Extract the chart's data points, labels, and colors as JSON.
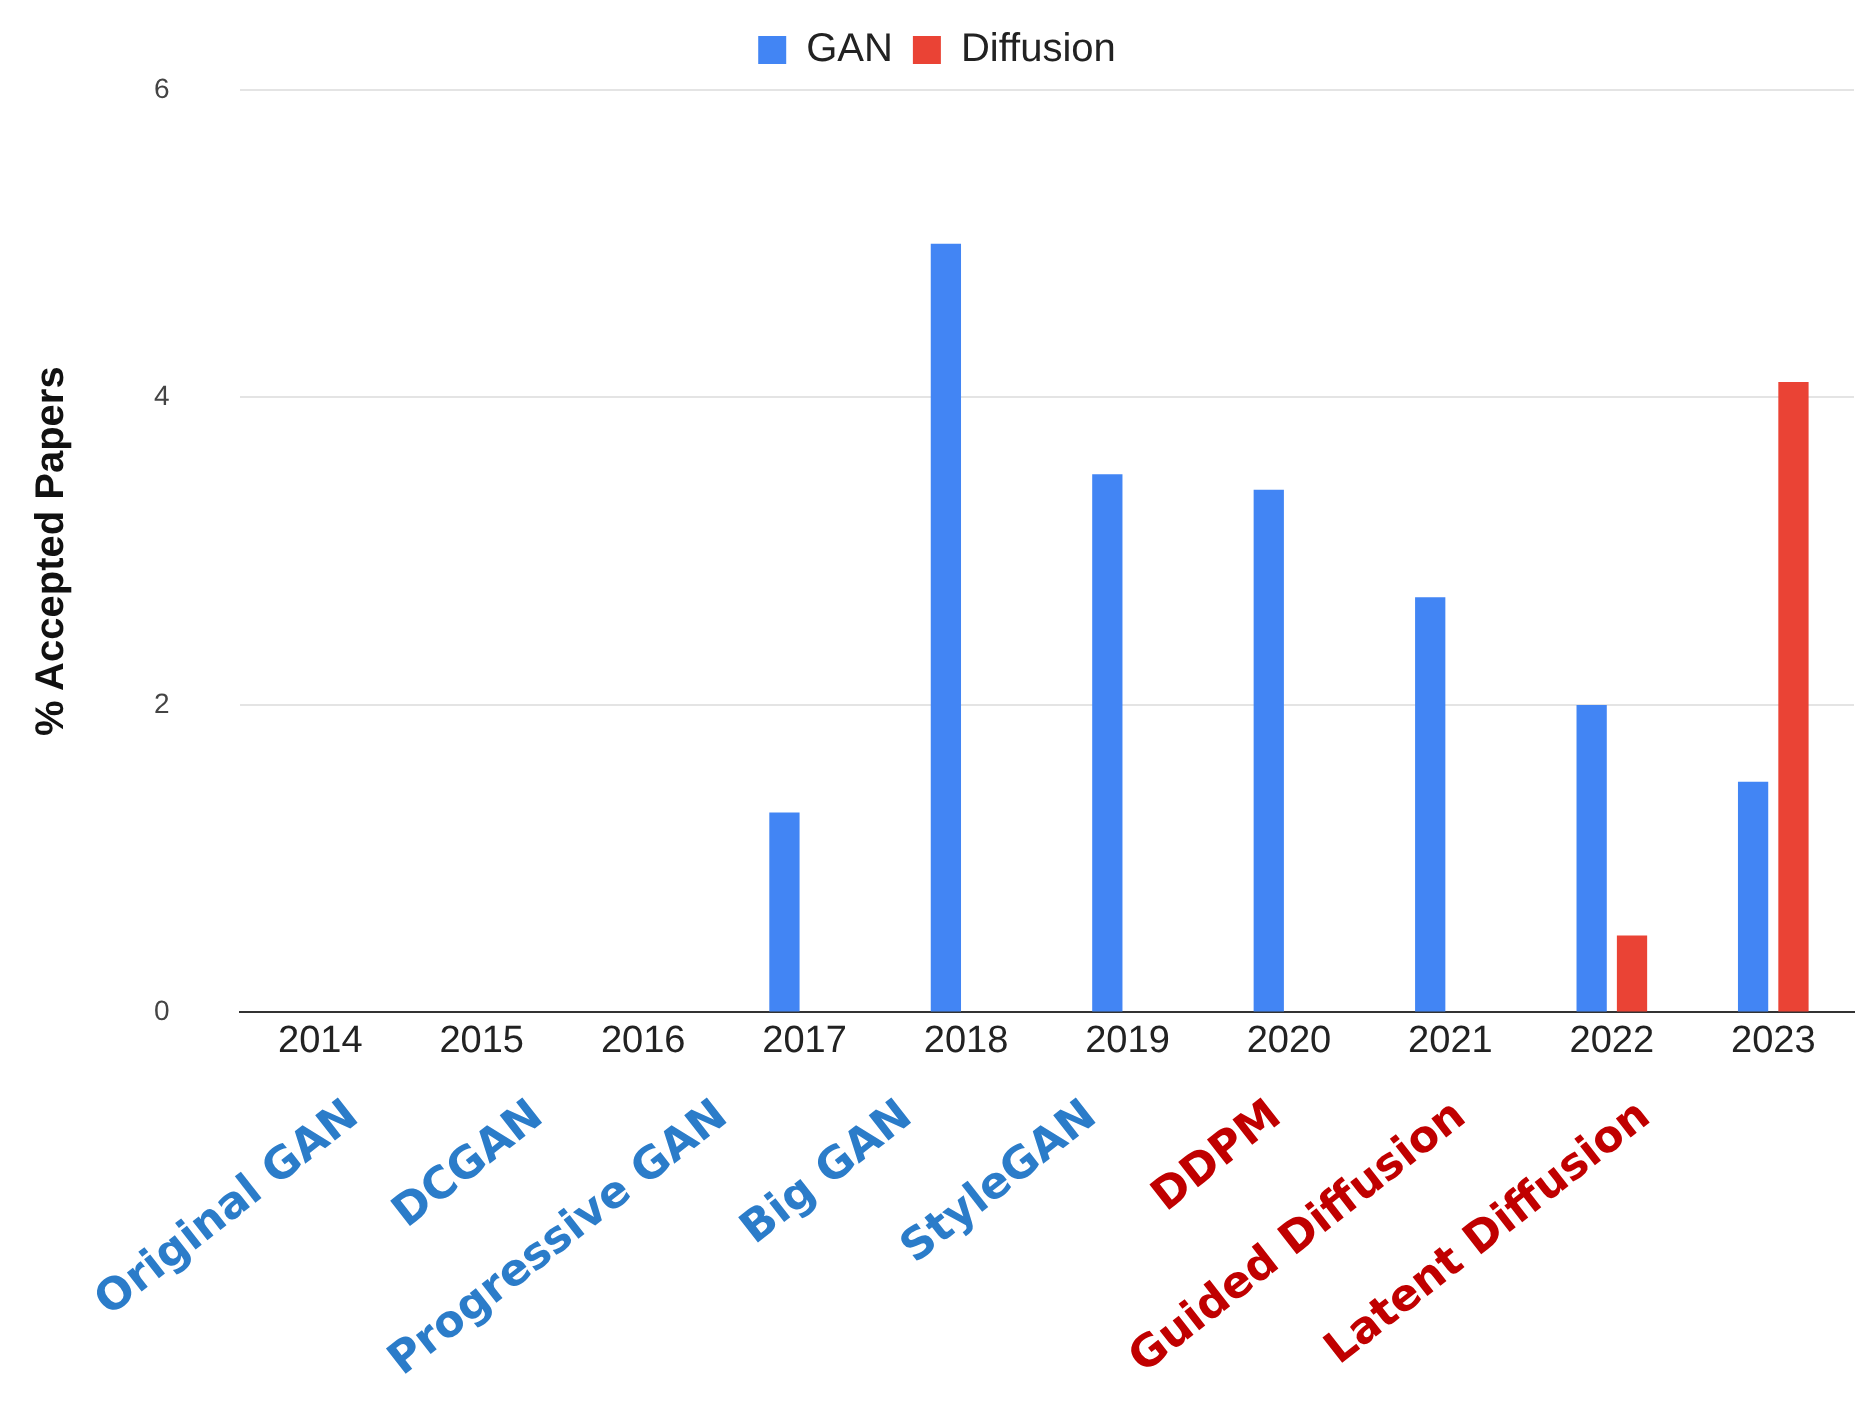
{
  "chart_data": {
    "type": "bar",
    "ylabel": "% Accepted Papers",
    "categories": [
      "2014",
      "2015",
      "2016",
      "2017",
      "2018",
      "2019",
      "2020",
      "2021",
      "2022",
      "2023"
    ],
    "series": [
      {
        "name": "GAN",
        "color": "#4285f4",
        "values": [
          0,
          0,
          0,
          1.3,
          5.0,
          3.5,
          3.4,
          2.7,
          2.0,
          1.5
        ]
      },
      {
        "name": "Diffusion",
        "color": "#ea4335",
        "values": [
          null,
          null,
          null,
          null,
          null,
          null,
          null,
          null,
          0.5,
          4.1
        ]
      }
    ],
    "ylim": [
      0,
      6
    ],
    "yticks": [
      0,
      2,
      4,
      6
    ],
    "grid": "y",
    "legend": "top",
    "annotations": [
      "Original GAN",
      "DCGAN",
      "Progressive GAN",
      "Big GAN",
      "StyleGAN",
      "DDPM",
      "Guided Diffusion",
      "Latent Diffusion"
    ]
  }
}
